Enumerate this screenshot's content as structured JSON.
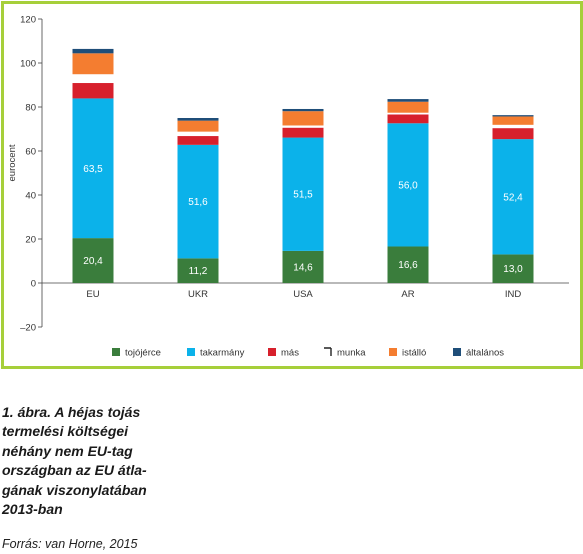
{
  "chart_data": {
    "type": "bar",
    "stacked": true,
    "ylabel": "eurocent",
    "ylim": [
      -20,
      120
    ],
    "yticks": [
      -20,
      0,
      20,
      40,
      60,
      80,
      100,
      120
    ],
    "grid": false,
    "legend_position": "bottom",
    "categories": [
      "EU",
      "UKR",
      "USA",
      "AR",
      "IND"
    ],
    "series": [
      {
        "name": "tojójérce",
        "color": "#3a7d3c",
        "values": [
          20.4,
          11.2,
          14.6,
          16.6,
          13.0
        ],
        "labels": [
          "20,4",
          "11,2",
          "14,6",
          "16,6",
          "13,0"
        ]
      },
      {
        "name": "takarmány",
        "color": "#0bb2ea",
        "values": [
          63.5,
          51.6,
          51.5,
          56.0,
          52.4
        ],
        "labels": [
          "63,5",
          "51,6",
          "51,5",
          "56,0",
          "52,4"
        ]
      },
      {
        "name": "más",
        "color": "#d7202c",
        "values": [
          7.0,
          4.0,
          4.5,
          4.0,
          5.0
        ]
      },
      {
        "name": "munka",
        "color": "#ffffff",
        "values": [
          4.0,
          2.0,
          1.0,
          0.8,
          1.5
        ]
      },
      {
        "name": "istálló",
        "color": "#f47d30",
        "values": [
          9.5,
          5.0,
          6.5,
          5.0,
          3.8
        ]
      },
      {
        "name": "általános",
        "color": "#1f4e79",
        "values": [
          2.0,
          1.2,
          1.0,
          1.2,
          0.6
        ]
      }
    ]
  },
  "caption": {
    "lines": [
      "1. ábra. A héjas tojás",
      "termelési költségei",
      "néhány nem EU-tag",
      "országban az EU átla-",
      "gának viszonylatában",
      "2013-ban"
    ],
    "source": "Forrás: van Horne, 2015"
  }
}
